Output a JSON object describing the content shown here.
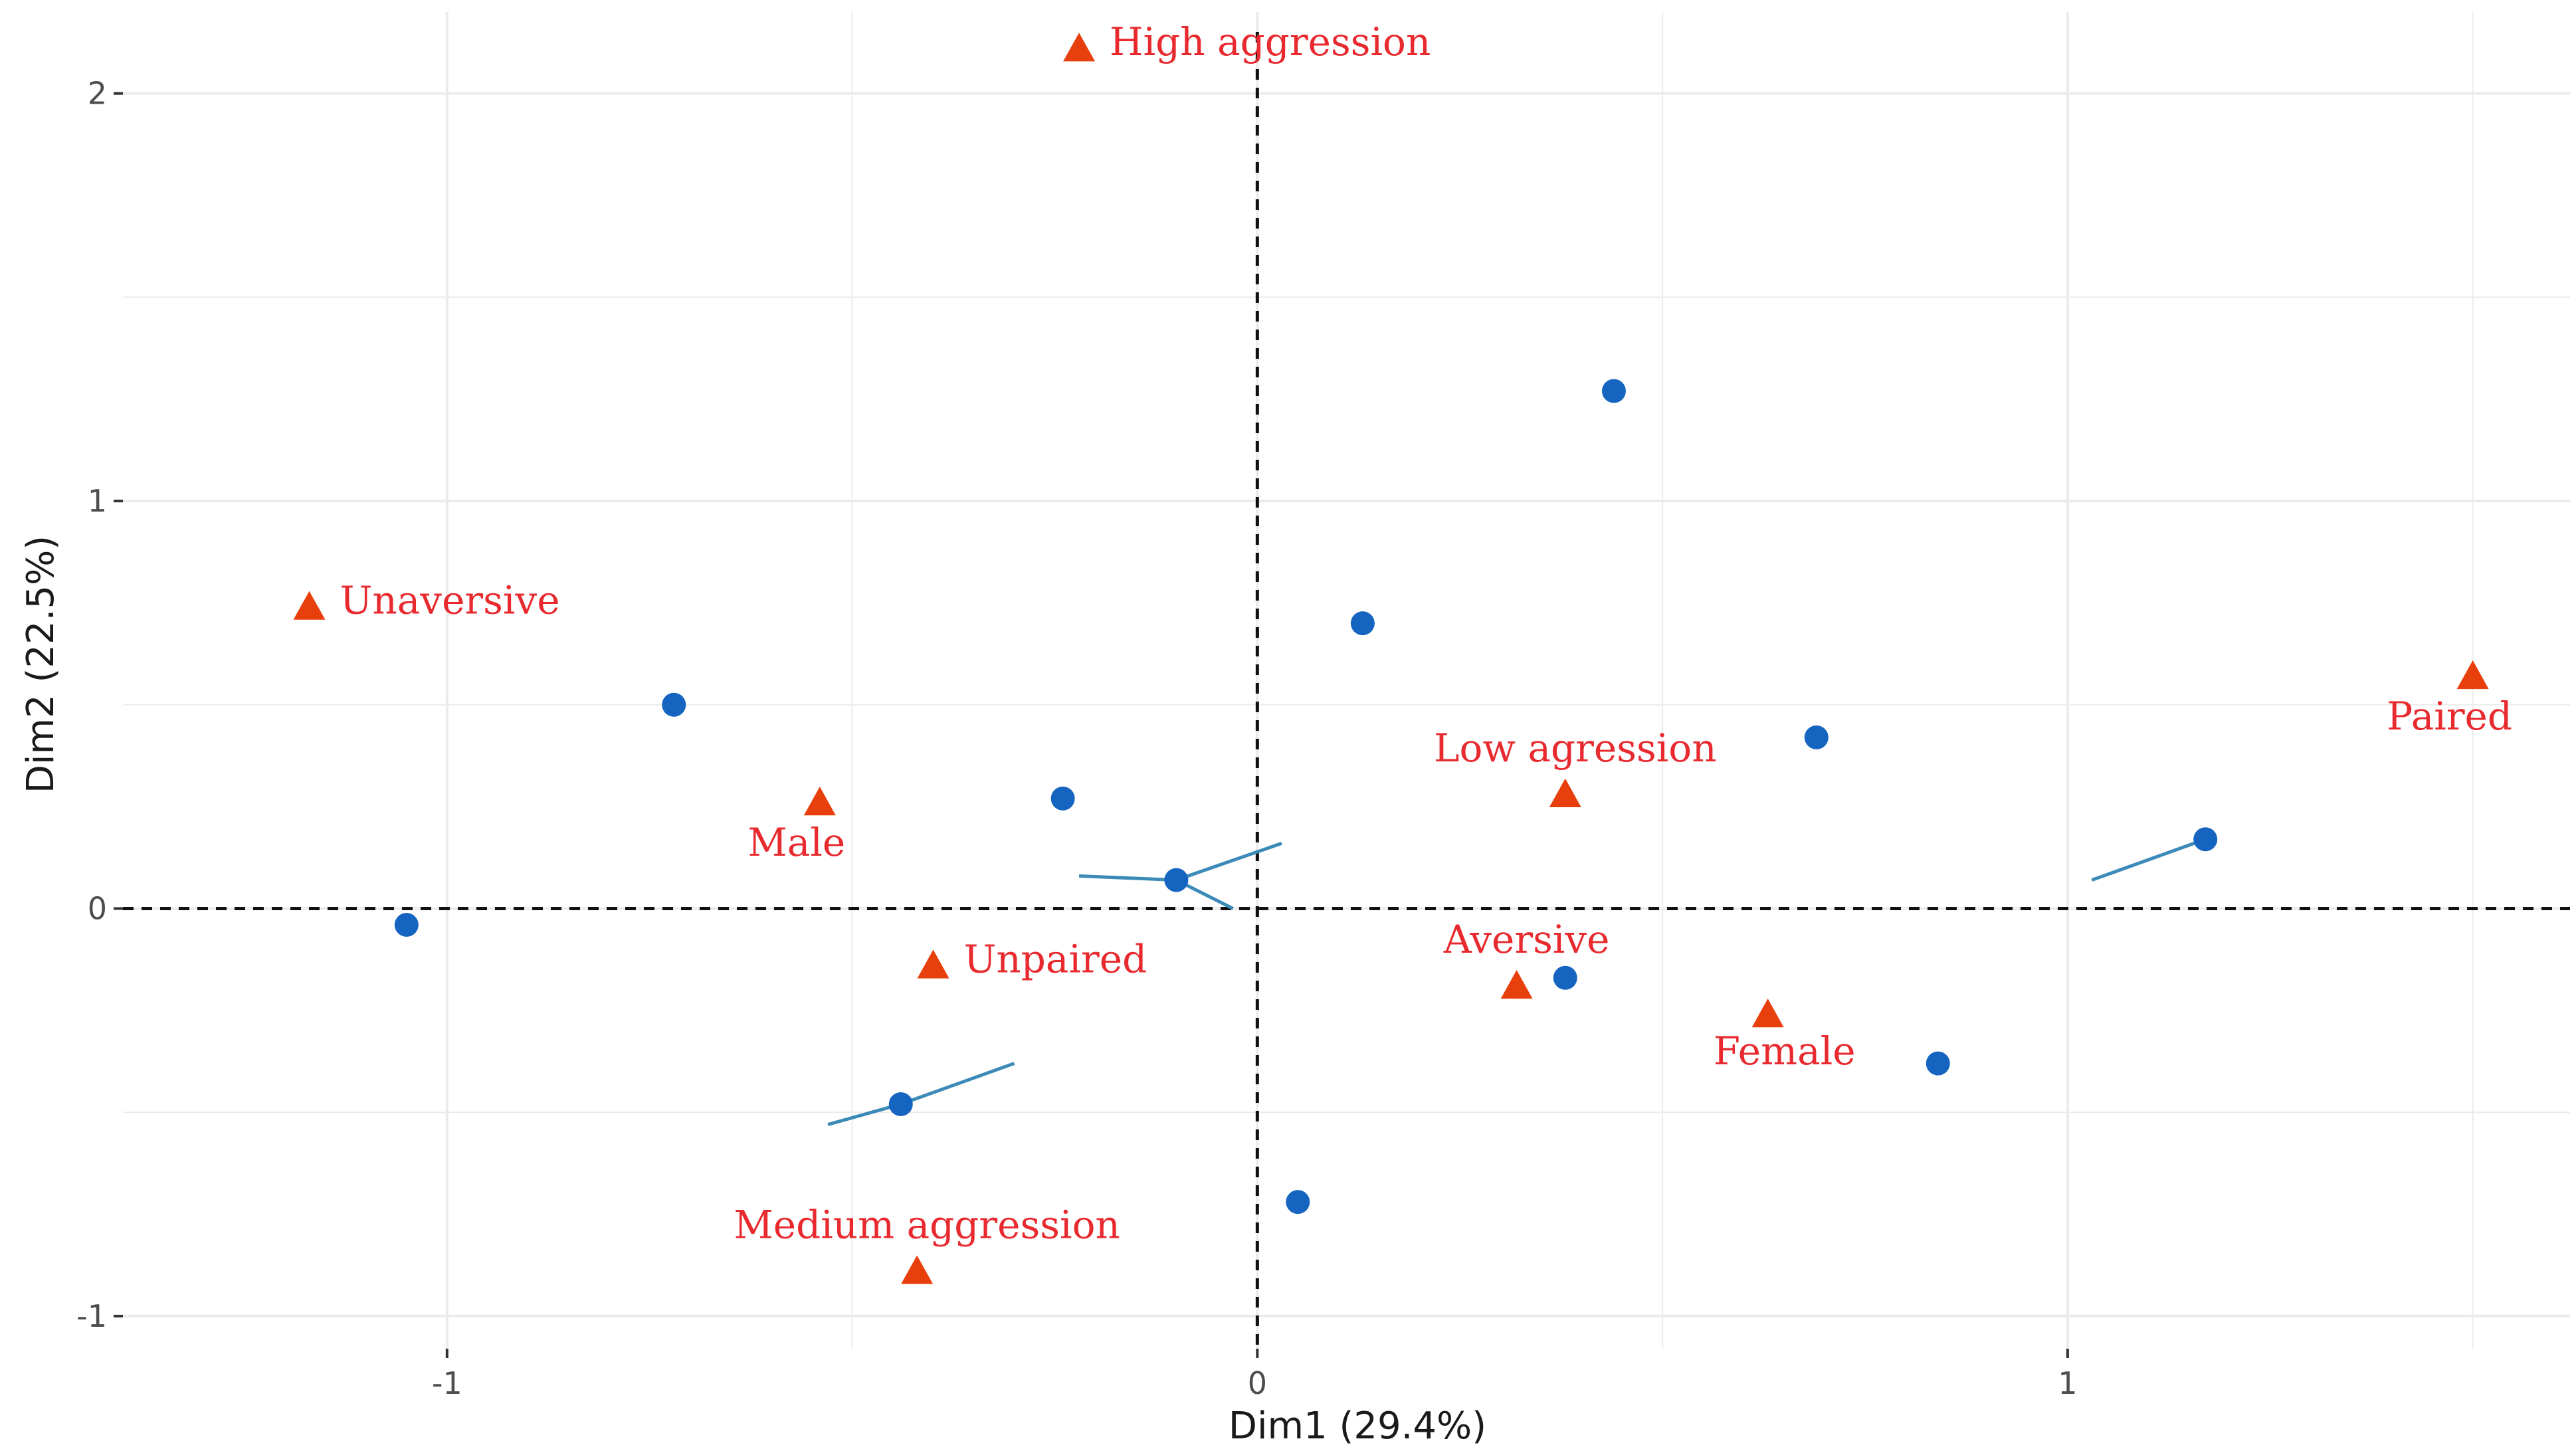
{
  "chart_data": {
    "type": "scatter",
    "title": "",
    "xlabel": "Dim1 (29.4%)",
    "ylabel": "Dim2 (22.5%)",
    "xlim": [
      -1.4,
      1.62
    ],
    "ylim": [
      -1.08,
      2.2
    ],
    "x_ticks": [
      {
        "value": -1,
        "label": "-1"
      },
      {
        "value": 0,
        "label": "0"
      },
      {
        "value": 1,
        "label": "1"
      }
    ],
    "y_ticks": [
      {
        "value": -1,
        "label": "-1"
      },
      {
        "value": 0,
        "label": "0"
      },
      {
        "value": 1,
        "label": "1"
      },
      {
        "value": 2,
        "label": "2"
      }
    ],
    "grid": true,
    "reference_lines": {
      "x": 0,
      "y": 0,
      "style": "dashed"
    },
    "individuals": [
      {
        "x": -1.05,
        "y": -0.04
      },
      {
        "x": -0.72,
        "y": 0.5
      },
      {
        "x": -0.44,
        "y": -0.48
      },
      {
        "x": -0.24,
        "y": 0.27
      },
      {
        "x": -0.1,
        "y": 0.07
      },
      {
        "x": 0.05,
        "y": -0.72
      },
      {
        "x": 0.13,
        "y": 0.7
      },
      {
        "x": 0.38,
        "y": -0.17
      },
      {
        "x": 0.44,
        "y": 1.27
      },
      {
        "x": 0.69,
        "y": 0.42
      },
      {
        "x": 0.84,
        "y": -0.38
      },
      {
        "x": 1.17,
        "y": 0.17
      }
    ],
    "categories": [
      {
        "label": "High aggression",
        "x": -0.22,
        "y": 2.11,
        "label_pos": "right"
      },
      {
        "label": "Unaversive",
        "x": -1.17,
        "y": 0.74,
        "label_pos": "right"
      },
      {
        "label": "Male",
        "x": -0.54,
        "y": 0.26,
        "label_pos": "below-left"
      },
      {
        "label": "Unpaired",
        "x": -0.4,
        "y": -0.14,
        "label_pos": "right"
      },
      {
        "label": "Medium aggression",
        "x": -0.42,
        "y": -0.89,
        "label_pos": "above"
      },
      {
        "label": "Low agression",
        "x": 0.38,
        "y": 0.28,
        "label_pos": "above"
      },
      {
        "label": "Aversive",
        "x": 0.32,
        "y": -0.19,
        "label_pos": "above"
      },
      {
        "label": "Female",
        "x": 0.63,
        "y": -0.26,
        "label_pos": "below"
      },
      {
        "label": "Paired",
        "x": 1.5,
        "y": 0.57,
        "label_pos": "below-left"
      }
    ],
    "colors": {
      "individuals": "#1565c0",
      "categories": "#e8400c",
      "category_labels": "#e8292e",
      "grid": "#ebebeb",
      "segments": "#3b8ab8"
    }
  }
}
